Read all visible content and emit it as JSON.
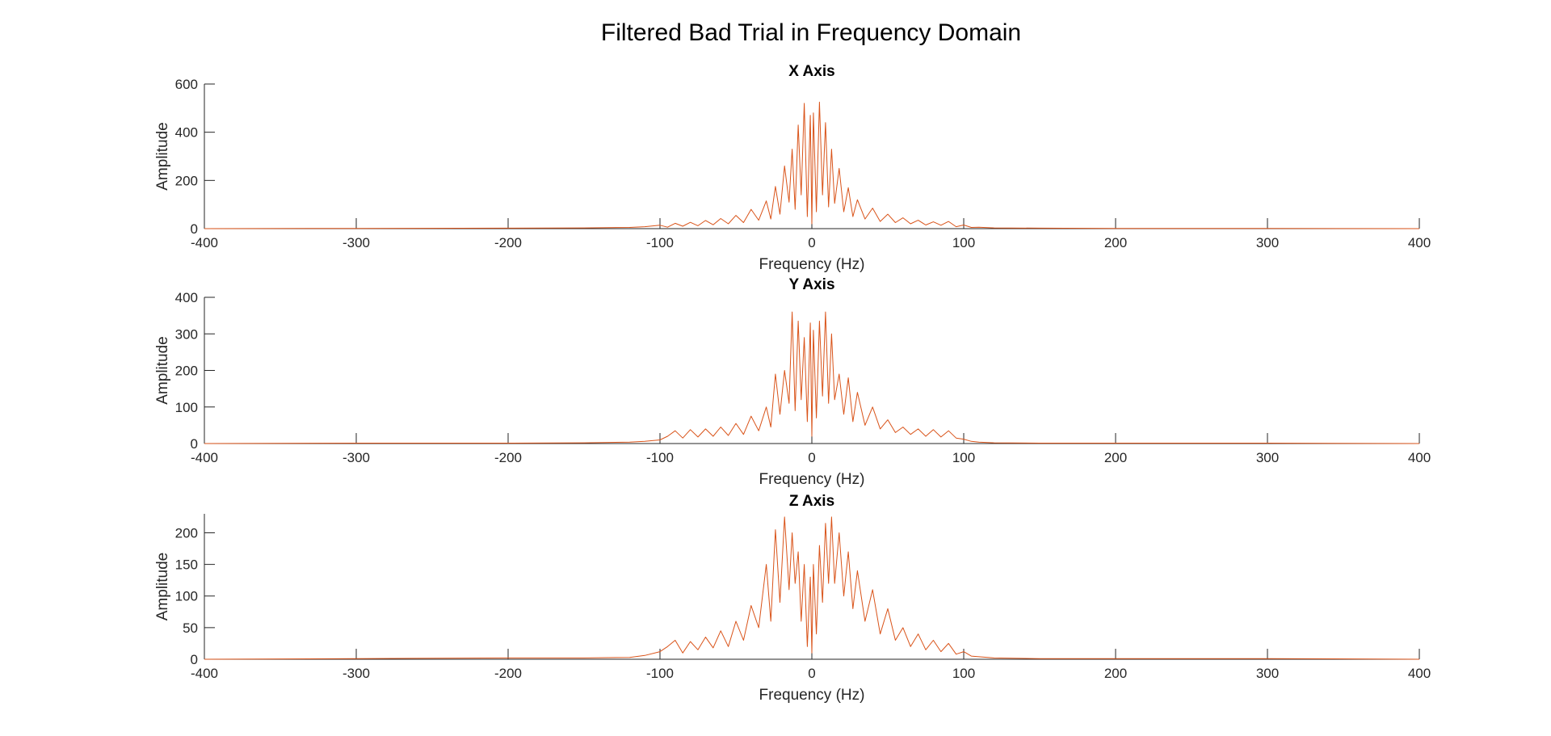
{
  "figure": {
    "suptitle": "Filtered Bad Trial in Frequency Domain",
    "line_color": "#D95319",
    "axis_color": "#262626",
    "background": "#FFFFFF"
  },
  "chart_data": [
    {
      "type": "line",
      "title": "X Axis",
      "xlabel": "Frequency (Hz)",
      "ylabel": "Amplitude",
      "xlim": [
        -400,
        400
      ],
      "ylim": [
        0,
        600
      ],
      "xticks": [
        -400,
        -300,
        -200,
        -100,
        0,
        100,
        200,
        300,
        400
      ],
      "xtick_labels": [
        "-400",
        "-300",
        "-200",
        "-100",
        "0",
        "100",
        "200",
        "300",
        "400"
      ],
      "yticks": [
        0,
        200,
        400,
        600
      ],
      "ytick_labels": [
        "0",
        "200",
        "400",
        "600"
      ],
      "grid": false,
      "series": [
        {
          "x": [
            -400,
            -300,
            -200,
            -150,
            -120,
            -110,
            -100,
            -95,
            -90,
            -85,
            -80,
            -75,
            -70,
            -65,
            -60,
            -55,
            -50,
            -45,
            -40,
            -35,
            -30,
            -27,
            -24,
            -21,
            -18,
            -15,
            -13,
            -11,
            -9,
            -7,
            -5,
            -3,
            -1,
            0,
            1,
            3,
            5,
            7,
            9,
            11,
            13,
            15,
            18,
            21,
            24,
            27,
            30,
            35,
            40,
            45,
            50,
            55,
            60,
            65,
            70,
            75,
            80,
            85,
            90,
            95,
            100,
            105,
            110,
            120,
            150,
            200,
            300,
            400
          ],
          "y": [
            0,
            1,
            2,
            3,
            5,
            8,
            14,
            6,
            22,
            10,
            26,
            12,
            34,
            16,
            42,
            20,
            55,
            25,
            80,
            35,
            115,
            40,
            175,
            60,
            260,
            110,
            330,
            80,
            430,
            140,
            520,
            50,
            470,
            20,
            480,
            70,
            525,
            140,
            440,
            90,
            330,
            105,
            250,
            70,
            170,
            50,
            120,
            40,
            85,
            30,
            60,
            25,
            45,
            20,
            35,
            15,
            28,
            14,
            30,
            8,
            15,
            5,
            6,
            3,
            2,
            1,
            1,
            0
          ]
        }
      ]
    },
    {
      "type": "line",
      "title": "Y Axis",
      "xlabel": "Frequency (Hz)",
      "ylabel": "Amplitude",
      "xlim": [
        -400,
        400
      ],
      "ylim": [
        0,
        400
      ],
      "xticks": [
        -400,
        -300,
        -200,
        -100,
        0,
        100,
        200,
        300,
        400
      ],
      "xtick_labels": [
        "-400",
        "-300",
        "-200",
        "-100",
        "0",
        "100",
        "200",
        "300",
        "400"
      ],
      "yticks": [
        0,
        100,
        200,
        300,
        400
      ],
      "ytick_labels": [
        "0",
        "100",
        "200",
        "300",
        "400"
      ],
      "grid": false,
      "series": [
        {
          "x": [
            -400,
            -300,
            -200,
            -150,
            -120,
            -110,
            -100,
            -95,
            -90,
            -85,
            -80,
            -75,
            -70,
            -65,
            -60,
            -55,
            -50,
            -45,
            -40,
            -35,
            -30,
            -27,
            -24,
            -21,
            -18,
            -15,
            -13,
            -11,
            -9,
            -7,
            -5,
            -3,
            -1,
            0,
            1,
            3,
            5,
            7,
            9,
            11,
            13,
            15,
            18,
            21,
            24,
            27,
            30,
            35,
            40,
            45,
            50,
            55,
            60,
            65,
            70,
            75,
            80,
            85,
            90,
            95,
            100,
            105,
            110,
            120,
            150,
            200,
            300,
            400
          ],
          "y": [
            0,
            1,
            1,
            2,
            4,
            6,
            10,
            20,
            35,
            15,
            38,
            18,
            40,
            20,
            45,
            22,
            55,
            25,
            75,
            35,
            100,
            45,
            190,
            80,
            200,
            110,
            360,
            90,
            335,
            120,
            290,
            60,
            330,
            20,
            310,
            70,
            335,
            130,
            360,
            110,
            300,
            120,
            190,
            80,
            180,
            60,
            140,
            50,
            100,
            40,
            65,
            30,
            45,
            25,
            40,
            20,
            38,
            18,
            35,
            15,
            12,
            6,
            4,
            2,
            1,
            1,
            1,
            0
          ]
        }
      ]
    },
    {
      "type": "line",
      "title": "Z Axis",
      "xlabel": "Frequency (Hz)",
      "ylabel": "Amplitude",
      "xlim": [
        -400,
        400
      ],
      "ylim": [
        0,
        230
      ],
      "xticks": [
        -400,
        -300,
        -200,
        -100,
        0,
        100,
        200,
        300,
        400
      ],
      "xtick_labels": [
        "-400",
        "-300",
        "-200",
        "-100",
        "0",
        "100",
        "200",
        "300",
        "400"
      ],
      "yticks": [
        0,
        50,
        100,
        150,
        200
      ],
      "ytick_labels": [
        "0",
        "50",
        "100",
        "150",
        "200"
      ],
      "grid": false,
      "series": [
        {
          "x": [
            -400,
            -300,
            -200,
            -150,
            -120,
            -110,
            -100,
            -95,
            -90,
            -85,
            -80,
            -75,
            -70,
            -65,
            -60,
            -55,
            -50,
            -45,
            -40,
            -35,
            -30,
            -27,
            -24,
            -21,
            -18,
            -15,
            -13,
            -11,
            -9,
            -7,
            -5,
            -3,
            -1,
            0,
            1,
            3,
            5,
            7,
            9,
            11,
            13,
            15,
            18,
            21,
            24,
            27,
            30,
            35,
            40,
            45,
            50,
            55,
            60,
            65,
            70,
            75,
            80,
            85,
            90,
            95,
            100,
            105,
            110,
            120,
            150,
            200,
            300,
            400
          ],
          "y": [
            0,
            1,
            2,
            2,
            3,
            6,
            12,
            20,
            30,
            10,
            28,
            15,
            35,
            18,
            45,
            20,
            60,
            30,
            85,
            50,
            150,
            60,
            205,
            90,
            225,
            110,
            200,
            120,
            170,
            60,
            150,
            20,
            130,
            10,
            150,
            40,
            180,
            90,
            215,
            120,
            225,
            120,
            200,
            100,
            170,
            80,
            140,
            60,
            110,
            40,
            80,
            30,
            50,
            20,
            40,
            15,
            30,
            12,
            25,
            8,
            12,
            5,
            4,
            2,
            1,
            1,
            1,
            0
          ]
        }
      ]
    }
  ]
}
